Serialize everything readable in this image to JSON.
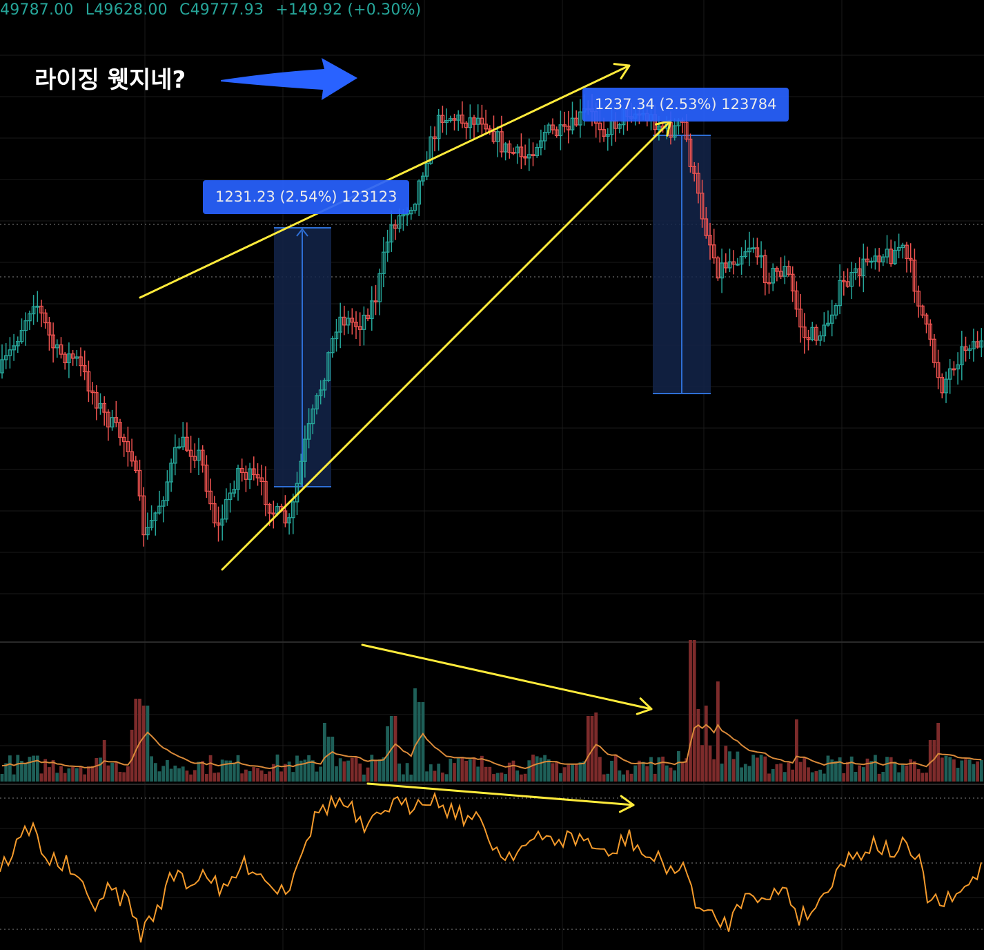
{
  "header": {
    "ohlc_items": [
      "49787.00",
      "L49628.00",
      "C49777.93",
      "+149.92 (+0.30%)"
    ]
  },
  "annotation": {
    "text": "라이징 웻지네?"
  },
  "measurements": [
    {
      "text": "1231.23 (2.54%) 123123"
    },
    {
      "text": "1237.34 (2.53%) 123784"
    }
  ],
  "colors": {
    "up": "#26a69a",
    "down": "#ef5350",
    "up_volume": "#1e5f58",
    "down_volume": "#7d2b2b",
    "trendline": "#ffeb3b",
    "arrow": "#2962ff",
    "measure_fill": "#13254a",
    "measure_line": "#2e6fd6",
    "volume_ma": "#d98a3a",
    "oscillator": "#f59b2c",
    "grid": "#1a1a1a"
  },
  "chart_data": {
    "type": "candlestick",
    "panes": [
      "price",
      "volume",
      "oscillator"
    ],
    "price_candles_close_approx": [
      49640,
      49660,
      49680,
      49700,
      49720,
      49740,
      49760,
      49730,
      49700,
      49690,
      49680,
      49670,
      49650,
      49620,
      49600,
      49580,
      49560,
      49540,
      49520,
      49500,
      49480,
      49460,
      49430,
      49400,
      49380,
      49360,
      49340,
      49320,
      49300,
      49280,
      49260,
      49240,
      49220,
      49260,
      49300,
      49340,
      49360,
      49380,
      49360,
      49340,
      49320,
      49300,
      49280,
      49260,
      49240,
      49250,
      49270,
      49300,
      49330,
      49360,
      49390,
      49420,
      49460,
      49500,
      49540,
      49580,
      49620,
      49660,
      49700,
      49740,
      49780,
      49820,
      49860,
      49900,
      49920,
      49910,
      49900,
      49890,
      49880,
      49870,
      49860,
      49850,
      49840,
      49850,
      49860,
      49870,
      49880,
      49890,
      49900,
      49910,
      49920,
      49900,
      49880,
      49860,
      49840,
      49820,
      49800,
      49780,
      49760,
      49740,
      49720,
      49700,
      49680,
      49660,
      49670,
      49690,
      49710,
      49730,
      49750,
      49760,
      49770,
      49777.93
    ],
    "volume_trend": "declining while price rises",
    "oscillator_trend": "declining while price rises"
  }
}
